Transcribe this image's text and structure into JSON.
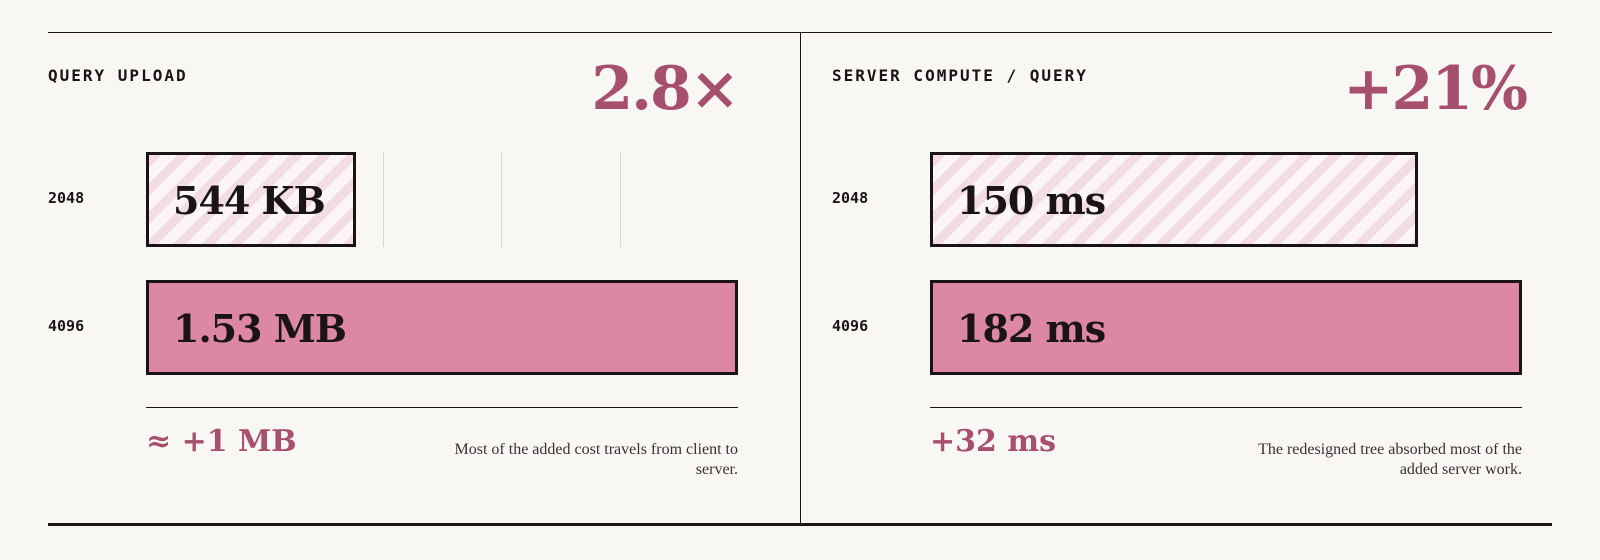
{
  "chart_data": [
    {
      "type": "bar",
      "title": "QUERY UPLOAD",
      "headline": "2.8×",
      "categories": [
        "2048",
        "4096"
      ],
      "values": [
        544,
        1530
      ],
      "unit": "KB",
      "value_labels": [
        "544 KB",
        "1.53 MB"
      ],
      "xlim": [
        0,
        1530
      ],
      "grid": true,
      "delta": "≈ +1 MB",
      "note": "Most of the added cost travels from client to server.",
      "colors": {
        "first": "#f3dde3",
        "second": "#dc88a2",
        "accent": "#a64f6e"
      }
    },
    {
      "type": "bar",
      "title": "SERVER COMPUTE / QUERY",
      "headline": "+21%",
      "categories": [
        "2048",
        "4096"
      ],
      "values": [
        150,
        182
      ],
      "unit": "ms",
      "value_labels": [
        "150 ms",
        "182 ms"
      ],
      "xlim": [
        0,
        182
      ],
      "grid": false,
      "delta": "+32 ms",
      "note": "The redesigned tree absorbed most of the added server work.",
      "colors": {
        "first": "#f3dde3",
        "second": "#dc88a2",
        "accent": "#a64f6e"
      }
    }
  ]
}
